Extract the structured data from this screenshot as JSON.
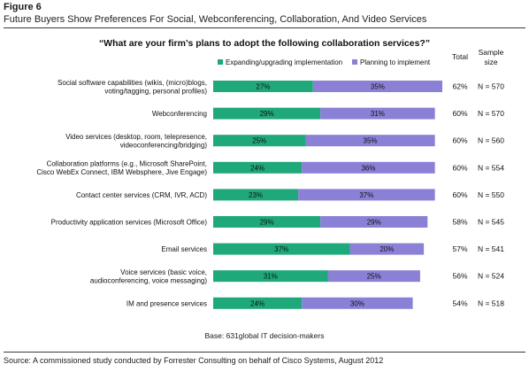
{
  "figure_label": "Figure 6",
  "figure_title": "Future Buyers Show Preferences For Social, Webconferencing, Collaboration, And Video Services",
  "chart_data": {
    "type": "bar",
    "orientation": "horizontal",
    "stacked": true,
    "title": "“What are your firm’s plans to adopt the following collaboration services?”",
    "categories": [
      "Social software capabilities (wikis, (micro)blogs, voting/tagging, personal profiles)",
      "Webconferencing",
      "Video services (desktop, room, telepresence, videoconferencing/bridging)",
      "Collaboration platforms (e.g., Microsoft SharePoint, Cisco WebEx Connect, IBM Websphere, Jive Engage)",
      "Contact center services (CRM, IVR, ACD)",
      "Productivity application services (Microsoft Office)",
      "Email services",
      "Voice services (basic voice, audioconferencing, voice messaging)",
      "IM and presence services"
    ],
    "category_lines": [
      [
        "Social software capabilities (wikis, (micro)blogs,",
        "voting/tagging, personal profiles)"
      ],
      [
        "Webconferencing"
      ],
      [
        "Video services (desktop, room, telepresence,",
        "videoconferencing/bridging)"
      ],
      [
        "Collaboration platforms (e.g., Microsoft SharePoint,",
        "Cisco WebEx Connect, IBM Websphere, Jive Engage)"
      ],
      [
        "Contact center services (CRM, IVR, ACD)"
      ],
      [
        "Productivity application services (Microsoft Office)"
      ],
      [
        "Email services"
      ],
      [
        "Voice services (basic voice,",
        "audioconferencing, voice messaging)"
      ],
      [
        "IM and presence services"
      ]
    ],
    "series": [
      {
        "name": "Expanding/upgrading implementation",
        "color": "#1fa87a",
        "values": [
          27,
          29,
          25,
          24,
          23,
          29,
          37,
          31,
          24
        ]
      },
      {
        "name": "Planning to implement",
        "color": "#8a80d6",
        "values": [
          35,
          31,
          35,
          36,
          37,
          29,
          20,
          25,
          30
        ]
      }
    ],
    "value_suffix": "%",
    "xlim": [
      0,
      62
    ],
    "total_header": "Total",
    "totals": [
      "62%",
      "60%",
      "60%",
      "60%",
      "60%",
      "58%",
      "57%",
      "56%",
      "54%"
    ],
    "sample_header": [
      "Sample",
      "size"
    ],
    "sample_sizes": [
      "N = 570",
      "N = 570",
      "N = 560",
      "N = 554",
      "N = 550",
      "N = 545",
      "N = 541",
      "N = 524",
      "N = 518"
    ],
    "base_note": "Base: 631global IT decision-makers"
  },
  "source": "Source: A commissioned study conducted by Forrester Consulting on behalf of Cisco Systems, August 2012"
}
